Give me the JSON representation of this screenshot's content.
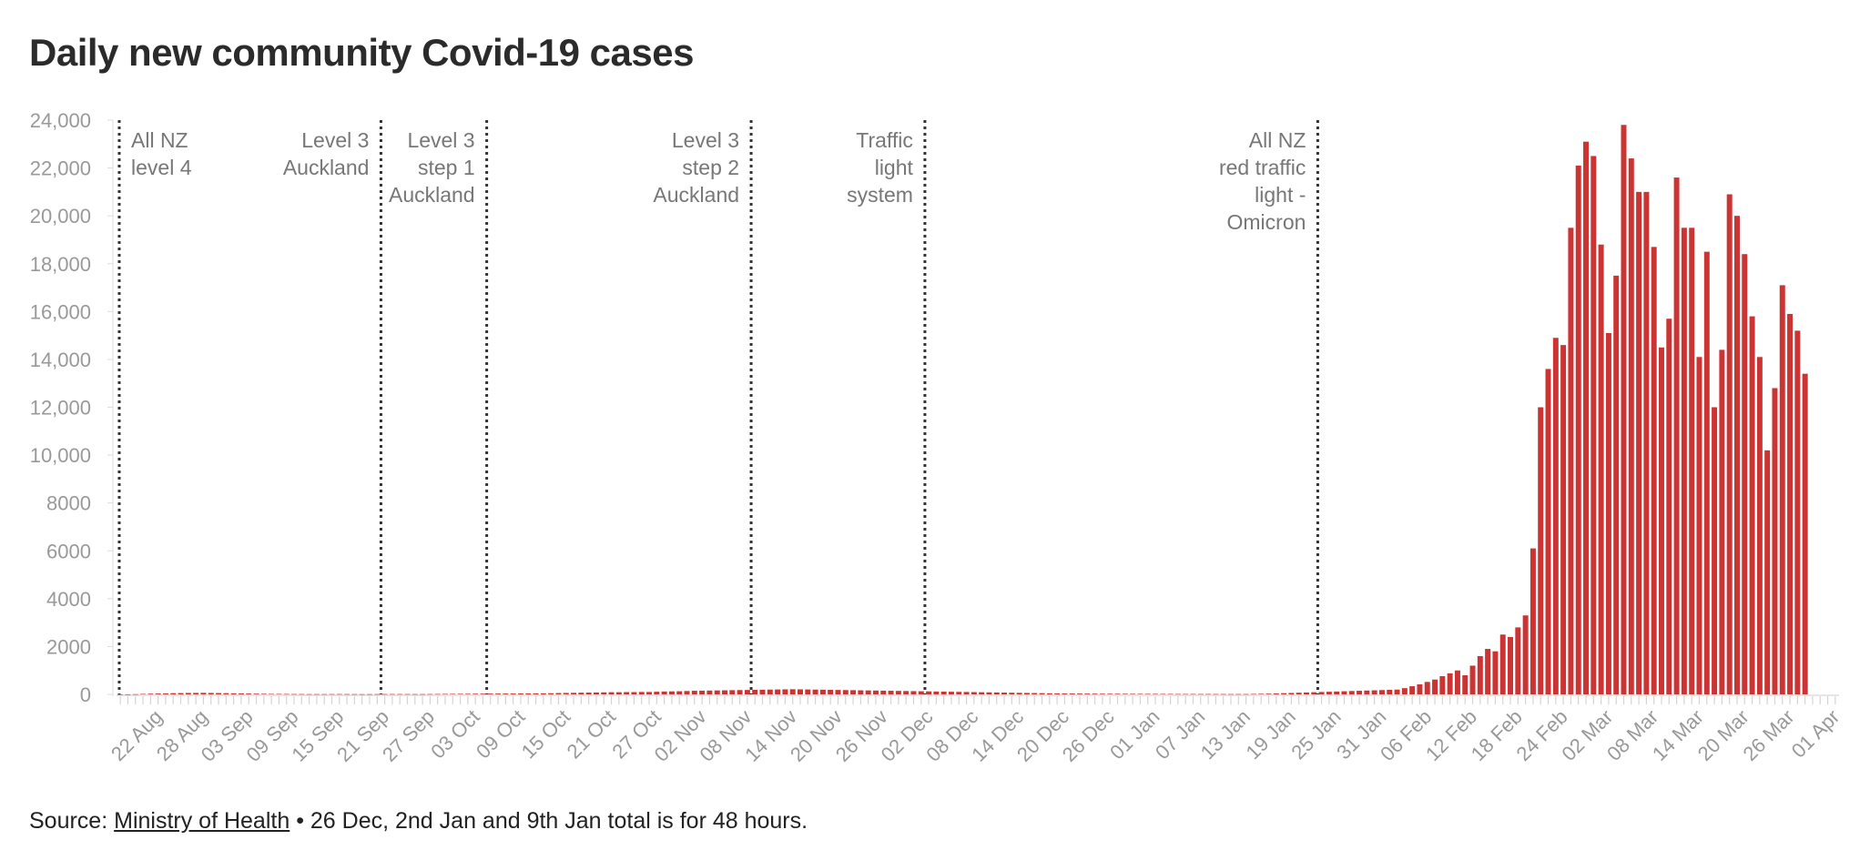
{
  "title": "Daily new community Covid-19 cases",
  "footer": {
    "source_label": "Source:",
    "source_link": "Ministry of Health",
    "note": "• 26 Dec, 2nd Jan and 9th Jan total is for 48 hours."
  },
  "colors": {
    "bar": "#cc3333",
    "axis": "#999999",
    "annotation": "#777777",
    "event_line": "#333333"
  },
  "chart_data": {
    "type": "bar",
    "start_date": "2021-08-17",
    "end_date": "2022-04-01",
    "ylim": [
      0,
      24000
    ],
    "yticks": [
      0,
      2000,
      4000,
      6000,
      8000,
      10000,
      12000,
      14000,
      16000,
      18000,
      20000,
      22000,
      24000
    ],
    "ytick_labels": [
      "0",
      "2000",
      "4000",
      "6000",
      "8000",
      "10,000",
      "12,000",
      "14,000",
      "16,000",
      "18,000",
      "20,000",
      "22,000",
      "24,000"
    ],
    "xtick_dates": [
      "2021-08-22",
      "2021-08-28",
      "2021-09-03",
      "2021-09-09",
      "2021-09-15",
      "2021-09-21",
      "2021-09-27",
      "2021-10-03",
      "2021-10-09",
      "2021-10-15",
      "2021-10-21",
      "2021-10-27",
      "2021-11-02",
      "2021-11-08",
      "2021-11-14",
      "2021-11-20",
      "2021-11-26",
      "2021-12-02",
      "2021-12-08",
      "2021-12-14",
      "2021-12-20",
      "2021-12-26",
      "2022-01-01",
      "2022-01-07",
      "2022-01-13",
      "2022-01-19",
      "2022-01-25",
      "2022-01-31",
      "2022-02-06",
      "2022-02-12",
      "2022-02-18",
      "2022-02-24",
      "2022-03-02",
      "2022-03-08",
      "2022-03-14",
      "2022-03-20",
      "2022-03-26",
      "2022-04-01"
    ],
    "xtick_labels": [
      "22 Aug",
      "28 Aug",
      "03 Sep",
      "09 Sep",
      "15 Sep",
      "21 Sep",
      "27 Sep",
      "03 Oct",
      "09 Oct",
      "15 Oct",
      "21 Oct",
      "27 Oct",
      "02 Nov",
      "08 Nov",
      "14 Nov",
      "20 Nov",
      "26 Nov",
      "02 Dec",
      "08 Dec",
      "14 Dec",
      "20 Dec",
      "26 Dec",
      "01 Jan",
      "07 Jan",
      "13 Jan",
      "19 Jan",
      "25 Jan",
      "31 Jan",
      "06 Feb",
      "12 Feb",
      "18 Feb",
      "24 Feb",
      "02 Mar",
      "08 Mar",
      "14 Mar",
      "20 Mar",
      "26 Mar",
      "01 Apr"
    ],
    "annotations": [
      {
        "date": "2021-08-17",
        "lines": [
          "All NZ",
          "level 4"
        ],
        "align": "left"
      },
      {
        "date": "2021-09-21",
        "lines": [
          "Level 3",
          "Auckland"
        ],
        "align": "right"
      },
      {
        "date": "2021-10-05",
        "lines": [
          "Level 3",
          "step 1",
          "Auckland"
        ],
        "align": "right"
      },
      {
        "date": "2021-11-09",
        "lines": [
          "Level 3",
          "step 2",
          "Auckland"
        ],
        "align": "right"
      },
      {
        "date": "2021-12-02",
        "lines": [
          "Traffic",
          "light",
          "system"
        ],
        "align": "right"
      },
      {
        "date": "2022-01-23",
        "lines": [
          "All NZ",
          "red traffic",
          "light -",
          "Omicron"
        ],
        "align": "right"
      }
    ],
    "values": [
      1,
      5,
      10,
      20,
      30,
      35,
      40,
      50,
      55,
      60,
      62,
      65,
      60,
      55,
      50,
      45,
      40,
      35,
      30,
      25,
      20,
      20,
      18,
      15,
      15,
      12,
      12,
      12,
      14,
      15,
      13,
      12,
      10,
      10,
      12,
      14,
      15,
      15,
      14,
      12,
      12,
      15,
      18,
      20,
      22,
      24,
      25,
      28,
      30,
      32,
      33,
      35,
      36,
      38,
      40,
      42,
      45,
      48,
      55,
      60,
      65,
      70,
      75,
      80,
      85,
      90,
      90,
      95,
      95,
      100,
      100,
      110,
      120,
      125,
      130,
      140,
      150,
      155,
      160,
      165,
      170,
      175,
      180,
      185,
      190,
      195,
      200,
      205,
      210,
      215,
      210,
      205,
      200,
      195,
      190,
      185,
      180,
      175,
      170,
      165,
      160,
      155,
      150,
      145,
      140,
      135,
      130,
      125,
      120,
      115,
      110,
      105,
      100,
      95,
      90,
      85,
      80,
      75,
      70,
      65,
      60,
      55,
      50,
      45,
      40,
      38,
      36,
      34,
      32,
      30,
      28,
      27,
      26,
      25,
      24,
      23,
      22,
      21,
      20,
      20,
      18,
      18,
      18,
      17,
      17,
      16,
      16,
      15,
      15,
      15,
      20,
      25,
      30,
      40,
      50,
      60,
      70,
      80,
      90,
      100,
      110,
      120,
      130,
      140,
      150,
      160,
      170,
      180,
      190,
      200,
      260,
      340,
      420,
      520,
      620,
      760,
      880,
      1000,
      800,
      1200,
      1600,
      1900,
      1800,
      2500,
      2400,
      2800,
      3300,
      6100,
      12000,
      13600,
      14900,
      14600,
      19500,
      22100,
      23100,
      22500,
      18800,
      15100,
      17500,
      23800,
      22400,
      21000,
      21000,
      18700,
      14500,
      15700,
      21600,
      19500,
      19500,
      14100,
      18500,
      12000,
      14400,
      20900,
      20000,
      18400,
      15800,
      14100,
      10200,
      12800,
      17100,
      15900,
      15200,
      13400
    ]
  }
}
